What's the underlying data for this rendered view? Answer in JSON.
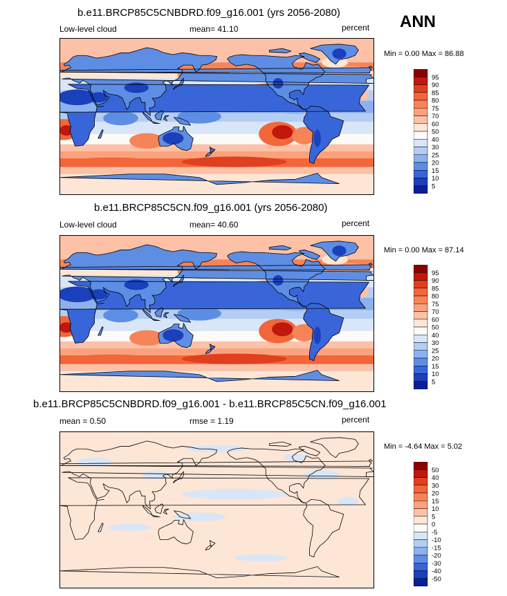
{
  "season": "ANN",
  "panels": [
    {
      "title": "b.e11.BRCP85C5CNBDRD.f09_g16.001 (yrs 2056-2080)",
      "left": "Low-level cloud",
      "center": "mean=  41.10",
      "right": "percent",
      "minmax": "Min =   0.00 Max =  86.88",
      "kind": "cloud"
    },
    {
      "title": "b.e11.BRCP85C5CN.f09_g16.001 (yrs 2056-2080)",
      "left": "Low-level cloud",
      "center": "mean=  40.60",
      "right": "percent",
      "minmax": "Min =   0.00 Max =  87.14",
      "kind": "cloud"
    },
    {
      "title": "b.e11.BRCP85C5CNBDRD.f09_g16.001 - b.e11.BRCP85C5CN.f09_g16.001",
      "left": "mean =    0.50",
      "center": "rmse =    1.19",
      "right": "percent",
      "minmax": "Min =  -4.64 Max =    5.02",
      "kind": "diff"
    }
  ],
  "chart_data": [
    {
      "type": "heatmap",
      "title": "b.e11.BRCP85C5CNBDRD.f09_g16.001 (yrs 2056-2080)",
      "variable": "Low-level cloud",
      "units": "percent",
      "mean": 41.1,
      "min": 0.0,
      "max": 86.88,
      "colorbar_levels": [
        5,
        10,
        15,
        20,
        25,
        30,
        40,
        50,
        60,
        70,
        75,
        80,
        85,
        90,
        95
      ]
    },
    {
      "type": "heatmap",
      "title": "b.e11.BRCP85C5CN.f09_g16.001 (yrs 2056-2080)",
      "variable": "Low-level cloud",
      "units": "percent",
      "mean": 40.6,
      "min": 0.0,
      "max": 87.14,
      "colorbar_levels": [
        5,
        10,
        15,
        20,
        25,
        30,
        40,
        50,
        60,
        70,
        75,
        80,
        85,
        90,
        95
      ]
    },
    {
      "type": "heatmap",
      "title": "b.e11.BRCP85C5CNBDRD.f09_g16.001 - b.e11.BRCP85C5CN.f09_g16.001",
      "units": "percent",
      "mean": 0.5,
      "rmse": 1.19,
      "min": -4.64,
      "max": 5.02,
      "colorbar_levels": [
        -50,
        -40,
        -30,
        -20,
        -15,
        -10,
        -5,
        0,
        5,
        10,
        15,
        20,
        30,
        40,
        50
      ]
    }
  ],
  "colorbars": {
    "cloud_labels": [
      "95",
      "90",
      "85",
      "80",
      "75",
      "70",
      "60",
      "50",
      "40",
      "30",
      "25",
      "20",
      "15",
      "10",
      "5"
    ],
    "diff_labels": [
      "50",
      "40",
      "30",
      "20",
      "15",
      "10",
      "5",
      "0",
      "-5",
      "-10",
      "-15",
      "-20",
      "-30",
      "-40",
      "-50"
    ],
    "colors": [
      "#8b0000",
      "#c0180c",
      "#e0401e",
      "#f2663a",
      "#f78458",
      "#fba27c",
      "#fcc1a6",
      "#fde6d6",
      "#fdfbf8",
      "#d8e6f8",
      "#b4cdf2",
      "#8cb1ec",
      "#5e8ee4",
      "#3866d8",
      "#1a40bc",
      "#0a1f94"
    ]
  }
}
